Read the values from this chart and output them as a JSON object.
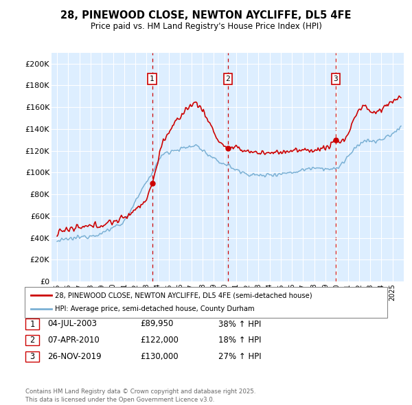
{
  "title": "28, PINEWOOD CLOSE, NEWTON AYCLIFFE, DL5 4FE",
  "subtitle": "Price paid vs. HM Land Registry's House Price Index (HPI)",
  "legend_line1": "28, PINEWOOD CLOSE, NEWTON AYCLIFFE, DL5 4FE (semi-detached house)",
  "legend_line2": "HPI: Average price, semi-detached house, County Durham",
  "sale_color": "#cc0000",
  "hpi_color": "#7ab0d4",
  "background_color": "#ddeeff",
  "plot_bg": "#ddeeff",
  "transaction_dates": [
    "04-JUL-2003",
    "07-APR-2010",
    "26-NOV-2019"
  ],
  "transaction_prices": [
    "£89,950",
    "£122,000",
    "£130,000"
  ],
  "transaction_pcts": [
    "38% ↑ HPI",
    "18% ↑ HPI",
    "27% ↑ HPI"
  ],
  "vline_dates": [
    2003.5,
    2010.27,
    2019.9
  ],
  "sale_points": [
    [
      2003.5,
      89950
    ],
    [
      2010.27,
      122000
    ],
    [
      2019.9,
      130000
    ]
  ],
  "ylim": [
    0,
    210000
  ],
  "xlim": [
    1994.5,
    2026.0
  ],
  "yticks": [
    0,
    20000,
    40000,
    60000,
    80000,
    100000,
    120000,
    140000,
    160000,
    180000,
    200000
  ],
  "ytick_labels": [
    "£0",
    "£20K",
    "£40K",
    "£60K",
    "£80K",
    "£100K",
    "£120K",
    "£140K",
    "£160K",
    "£180K",
    "£200K"
  ],
  "footer": "Contains HM Land Registry data © Crown copyright and database right 2025.\nThis data is licensed under the Open Government Licence v3.0."
}
